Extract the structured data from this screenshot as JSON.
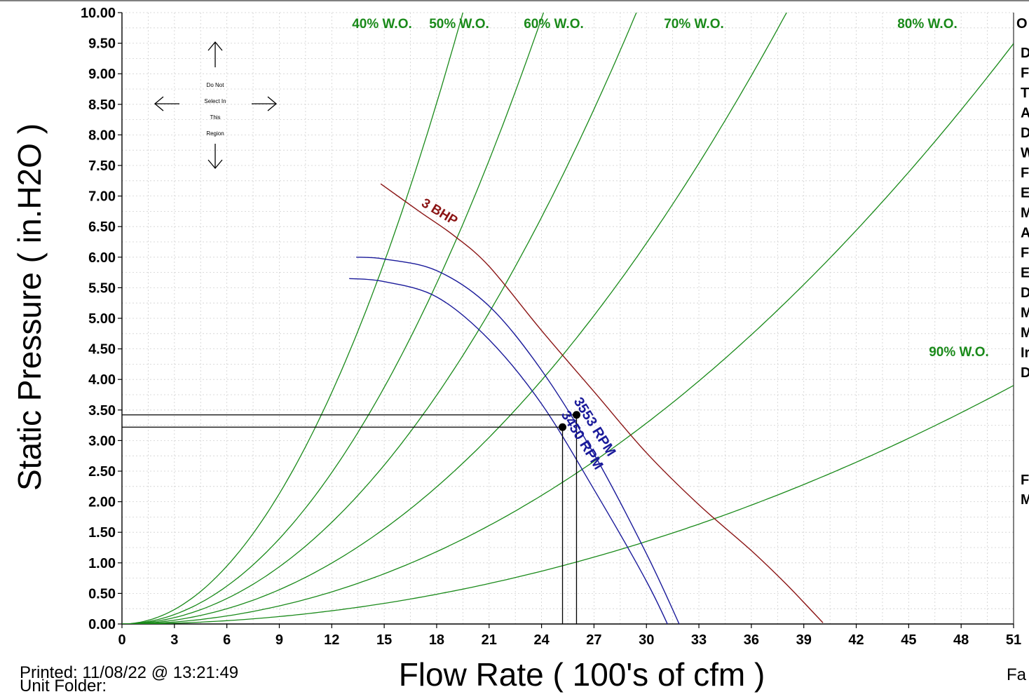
{
  "chart_data": {
    "type": "line",
    "xlabel": "Flow Rate ( 100's of cfm )",
    "ylabel": "Static Pressure ( in.H2O )",
    "xlim": [
      0,
      51
    ],
    "ylim": [
      0,
      10
    ],
    "x_ticks": [
      "0",
      "3",
      "6",
      "9",
      "12",
      "15",
      "18",
      "21",
      "24",
      "27",
      "30",
      "33",
      "36",
      "39",
      "42",
      "45",
      "48",
      "51"
    ],
    "y_ticks": [
      "0.00",
      "0.50",
      "1.00",
      "1.50",
      "2.00",
      "2.50",
      "3.00",
      "3.50",
      "4.00",
      "4.50",
      "5.00",
      "5.50",
      "6.00",
      "6.50",
      "7.00",
      "7.50",
      "8.00",
      "8.50",
      "9.00",
      "9.50",
      "10.00"
    ],
    "grid": true,
    "system_curves": [
      {
        "name": "40% W.O.",
        "k": 0.0263
      },
      {
        "name": "50% W.O.",
        "k": 0.0172
      },
      {
        "name": "60% W.O.",
        "k": 0.01155
      },
      {
        "name": "70% W.O.",
        "k": 0.00692
      },
      {
        "name": "80% W.O.",
        "k": 0.00365
      },
      {
        "name": "90% W.O.",
        "k": 0.0015
      }
    ],
    "fan_curves": [
      {
        "name": "3553 RPM",
        "x": [
          13.4,
          15,
          18,
          21,
          24,
          27,
          30,
          32,
          33.6
        ],
        "y": [
          6.0,
          5.97,
          5.78,
          5.2,
          4.15,
          2.78,
          1.15,
          -0.08,
          -1.1
        ]
      },
      {
        "name": "3450 RPM",
        "x": [
          13.0,
          15,
          18,
          21,
          24,
          27,
          30,
          31.6,
          32.6
        ],
        "y": [
          5.65,
          5.6,
          5.35,
          4.65,
          3.6,
          2.2,
          0.7,
          -0.25,
          -0.9
        ]
      }
    ],
    "bhp_curve": {
      "name": "3 BHP",
      "x": [
        14.8,
        17,
        19,
        21,
        24,
        27,
        30,
        33,
        36,
        38,
        40.1
      ],
      "y": [
        7.2,
        6.75,
        6.35,
        5.85,
        4.8,
        3.8,
        2.8,
        1.95,
        1.2,
        0.65,
        0.02
      ]
    },
    "operating_points": [
      {
        "x": 26.0,
        "y": 3.42
      },
      {
        "x": 25.2,
        "y": 3.22
      }
    ]
  },
  "drag_hint": {
    "line1": "Do Not",
    "line2": "Select In",
    "line3": "This",
    "line4": "Region"
  },
  "right_panel": {
    "heading": "O",
    "letters": [
      "D",
      "F",
      "T",
      "A",
      "D",
      "W",
      "F",
      "E",
      "M",
      "A",
      "F",
      "E",
      "D",
      "M",
      "M",
      "Ir",
      "D"
    ],
    "lower_letters": [
      "F",
      "M"
    ],
    "footer_fragment": "Fa"
  },
  "footer": {
    "printed": "Printed: 11/08/22 @ 13:21:49",
    "unit_folder": "Unit Folder:"
  }
}
